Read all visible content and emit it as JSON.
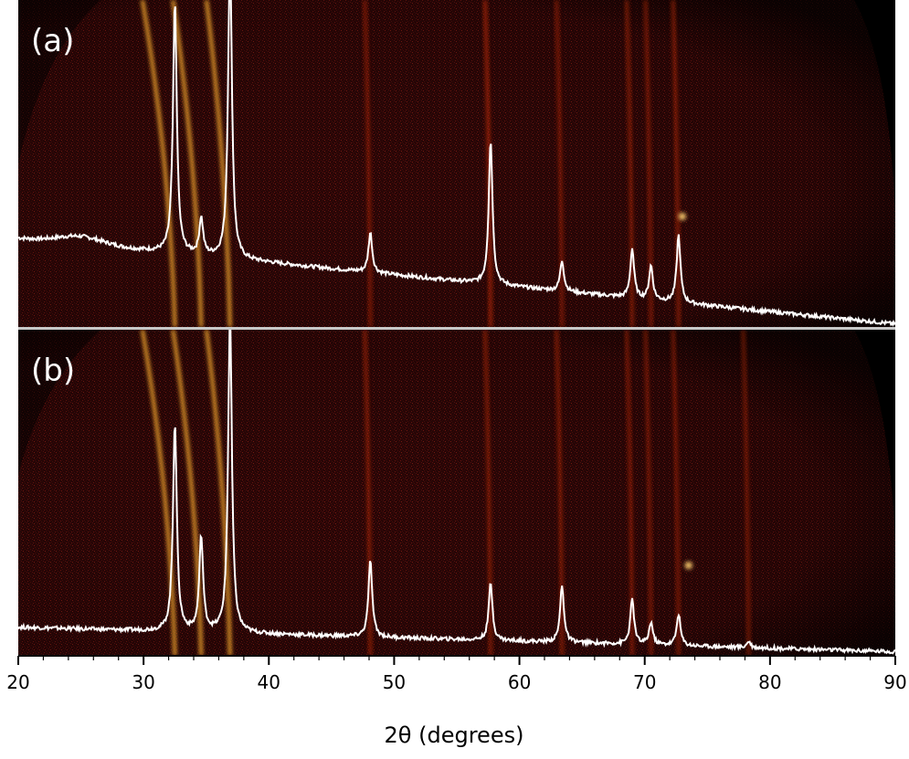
{
  "chart_data": {
    "type": "line",
    "xlabel": "2θ (degrees)",
    "xlim": [
      20,
      90
    ],
    "x_ticks": [
      20,
      30,
      40,
      50,
      60,
      70,
      80,
      90
    ],
    "panels": [
      {
        "label": "(a)",
        "peaks": [
          {
            "x": 32.5,
            "y": 0.82
          },
          {
            "x": 34.6,
            "y": 0.12
          },
          {
            "x": 36.9,
            "y": 1.0
          },
          {
            "x": 48.1,
            "y": 0.13
          },
          {
            "x": 57.7,
            "y": 0.47
          },
          {
            "x": 63.4,
            "y": 0.1
          },
          {
            "x": 69.0,
            "y": 0.16
          },
          {
            "x": 70.5,
            "y": 0.11
          },
          {
            "x": 72.7,
            "y": 0.22
          }
        ]
      },
      {
        "label": "(b)",
        "peaks": [
          {
            "x": 32.5,
            "y": 0.66
          },
          {
            "x": 34.6,
            "y": 0.3
          },
          {
            "x": 36.9,
            "y": 1.0
          },
          {
            "x": 48.1,
            "y": 0.24
          },
          {
            "x": 57.7,
            "y": 0.18
          },
          {
            "x": 63.4,
            "y": 0.18
          },
          {
            "x": 69.0,
            "y": 0.14
          },
          {
            "x": 70.5,
            "y": 0.07
          },
          {
            "x": 72.7,
            "y": 0.1
          },
          {
            "x": 78.3,
            "y": 0.02
          }
        ]
      }
    ],
    "colors": {
      "background": "#2a0606",
      "ring": "#ff3a12",
      "ring_bright": "#ffb030",
      "trace": "#ffffff",
      "spot": "#ffd070"
    }
  }
}
